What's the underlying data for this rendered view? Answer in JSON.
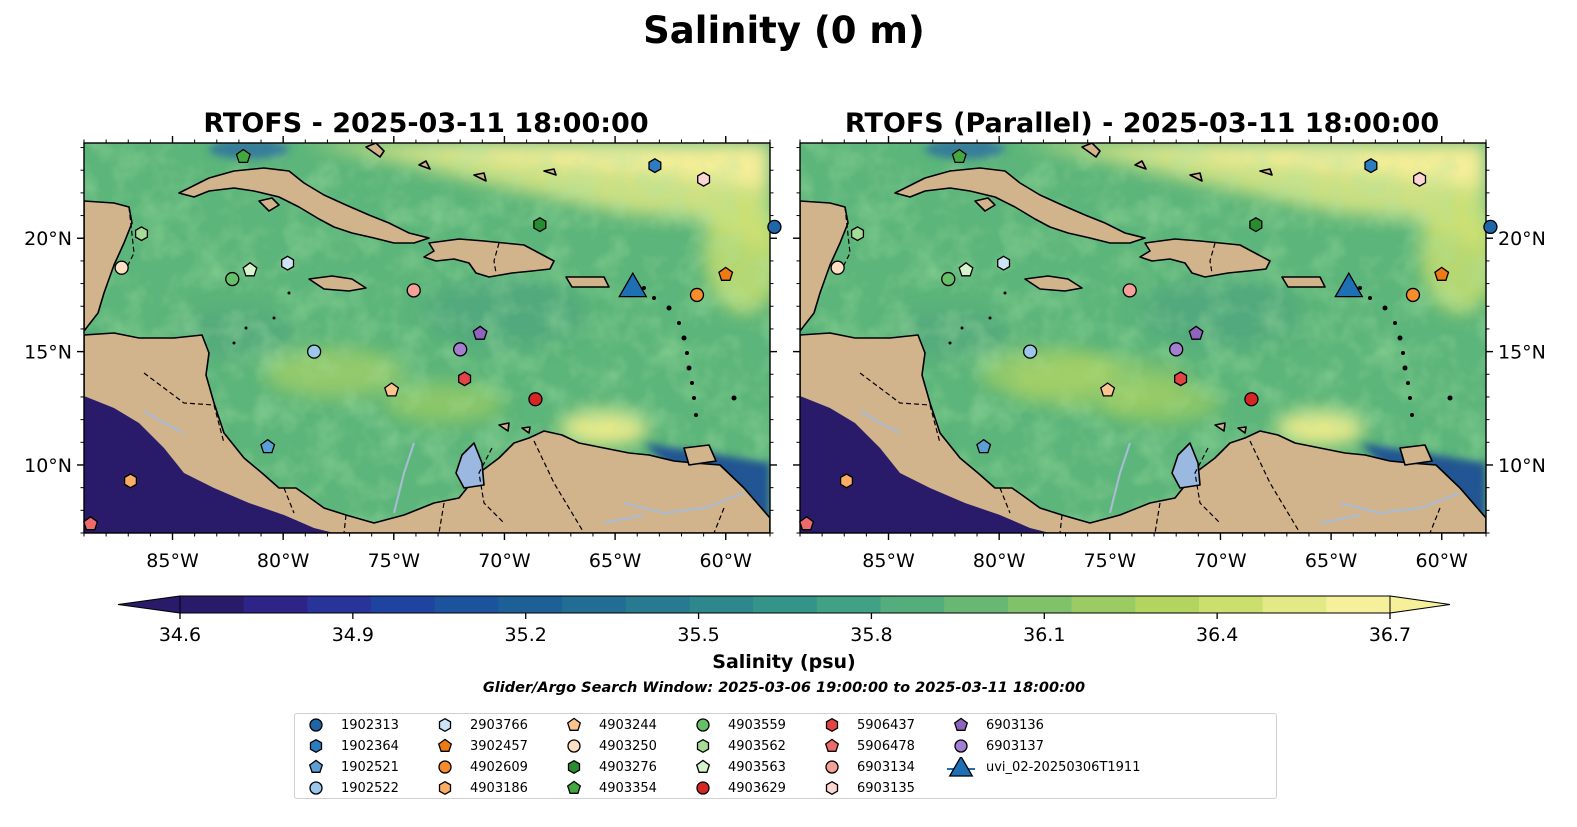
{
  "figure": {
    "title": "Salinity (0 m)",
    "search_window": "Glider/Argo Search Window: 2025-03-06 19:00:00 to 2025-03-11 18:00:00"
  },
  "panels": [
    {
      "title": "RTOFS - 2025-03-11 18:00:00",
      "variant": "rtofs"
    },
    {
      "title": "RTOFS (Parallel) - 2025-03-11 18:00:00",
      "variant": "parallel"
    }
  ],
  "map": {
    "extent_lon": [
      -89,
      -58
    ],
    "extent_lat": [
      7,
      24.2
    ],
    "x_ticks": [
      {
        "value": -85,
        "label": "85°W"
      },
      {
        "value": -80,
        "label": "80°W"
      },
      {
        "value": -75,
        "label": "75°W"
      },
      {
        "value": -70,
        "label": "70°W"
      },
      {
        "value": -65,
        "label": "65°W"
      },
      {
        "value": -60,
        "label": "60°W"
      }
    ],
    "y_ticks": [
      {
        "value": 10,
        "label": "10°N"
      },
      {
        "value": 15,
        "label": "15°N"
      },
      {
        "value": 20,
        "label": "20°N"
      }
    ],
    "colors": {
      "land": "#d2b48c",
      "lake": "#9ab8e0",
      "river": "#a8bcd8",
      "coast": "#000000"
    }
  },
  "colorbar": {
    "label": "Salinity (psu)",
    "min": 34.6,
    "max": 36.7,
    "ticks": [
      {
        "value": 34.6,
        "label": "34.6"
      },
      {
        "value": 34.9,
        "label": "34.9"
      },
      {
        "value": 35.2,
        "label": "35.2"
      },
      {
        "value": 35.5,
        "label": "35.5"
      },
      {
        "value": 35.8,
        "label": "35.8"
      },
      {
        "value": 36.1,
        "label": "36.1"
      },
      {
        "value": 36.4,
        "label": "36.4"
      },
      {
        "value": 36.7,
        "label": "36.7"
      }
    ],
    "colors": [
      "#2a1b6a",
      "#2e2488",
      "#28349a",
      "#1f44a0",
      "#1b539c",
      "#1d6097",
      "#216d93",
      "#277a90",
      "#2d878c",
      "#359489",
      "#41a184",
      "#54ad7c",
      "#68b873",
      "#80c26a",
      "#9acc63",
      "#b3d55f",
      "#cbdf6c",
      "#e3ea85",
      "#f6f09a"
    ]
  },
  "legend": [
    {
      "name": "1902313",
      "marker": "circle",
      "color": "#1f66a8"
    },
    {
      "name": "1902364",
      "marker": "hexagon",
      "color": "#2e7cc0"
    },
    {
      "name": "1902521",
      "marker": "pentagon",
      "color": "#5b9fd4"
    },
    {
      "name": "1902522",
      "marker": "circle",
      "color": "#9cc6ea"
    },
    {
      "name": "2903766",
      "marker": "hexagon",
      "color": "#cde4f6"
    },
    {
      "name": "3902457",
      "marker": "pentagon",
      "color": "#ee7a14"
    },
    {
      "name": "4902609",
      "marker": "circle",
      "color": "#f68c2a"
    },
    {
      "name": "4903186",
      "marker": "hexagon",
      "color": "#fbad66"
    },
    {
      "name": "4903244",
      "marker": "pentagon",
      "color": "#fcc590"
    },
    {
      "name": "4903250",
      "marker": "circle",
      "color": "#fde0c3"
    },
    {
      "name": "4903276",
      "marker": "hexagon",
      "color": "#2a8c30"
    },
    {
      "name": "4903354",
      "marker": "pentagon",
      "color": "#44a840"
    },
    {
      "name": "4903559",
      "marker": "circle",
      "color": "#67c067"
    },
    {
      "name": "4903562",
      "marker": "hexagon",
      "color": "#a4dc98"
    },
    {
      "name": "4903563",
      "marker": "pentagon",
      "color": "#d6f3cc"
    },
    {
      "name": "4903629",
      "marker": "circle",
      "color": "#d62624"
    },
    {
      "name": "5906437",
      "marker": "hexagon",
      "color": "#e24444"
    },
    {
      "name": "5906478",
      "marker": "pentagon",
      "color": "#ef6a6a"
    },
    {
      "name": "6903134",
      "marker": "circle",
      "color": "#f6a09a"
    },
    {
      "name": "6903135",
      "marker": "hexagon",
      "color": "#fcd6d2"
    },
    {
      "name": "6903136",
      "marker": "pentagon",
      "color": "#8e64bc"
    },
    {
      "name": "6903137",
      "marker": "circle",
      "color": "#a57fcf"
    },
    {
      "name": "uvi_02-20250306T1911",
      "marker": "triangle",
      "color": "#1f6fb4"
    }
  ],
  "floats": [
    {
      "name": "1902313",
      "lon": -57.8,
      "lat": 20.5
    },
    {
      "name": "1902364",
      "lon": -63.2,
      "lat": 23.2
    },
    {
      "name": "1902521",
      "lon": -80.7,
      "lat": 10.8
    },
    {
      "name": "1902522",
      "lon": -78.6,
      "lat": 15.0
    },
    {
      "name": "2903766",
      "lon": -79.8,
      "lat": 18.9
    },
    {
      "name": "3902457",
      "lon": -60.0,
      "lat": 18.4
    },
    {
      "name": "4902609",
      "lon": -61.3,
      "lat": 17.5
    },
    {
      "name": "4903186",
      "lon": -86.9,
      "lat": 9.3
    },
    {
      "name": "4903244",
      "lon": -75.1,
      "lat": 13.3
    },
    {
      "name": "4903250",
      "lon": -87.3,
      "lat": 18.7
    },
    {
      "name": "4903276",
      "lon": -68.4,
      "lat": 20.6
    },
    {
      "name": "4903354",
      "lon": -81.8,
      "lat": 23.6
    },
    {
      "name": "4903559",
      "lon": -82.3,
      "lat": 18.2
    },
    {
      "name": "4903562",
      "lon": -86.4,
      "lat": 20.2
    },
    {
      "name": "4903563",
      "lon": -81.5,
      "lat": 18.6
    },
    {
      "name": "4903629",
      "lon": -68.6,
      "lat": 12.9
    },
    {
      "name": "5906437",
      "lon": -71.8,
      "lat": 13.8
    },
    {
      "name": "5906478",
      "lon": -88.7,
      "lat": 7.4
    },
    {
      "name": "6903134",
      "lon": -74.1,
      "lat": 17.7
    },
    {
      "name": "6903135",
      "lon": -61.0,
      "lat": 22.6
    },
    {
      "name": "6903136",
      "lon": -71.1,
      "lat": 15.8
    },
    {
      "name": "6903137",
      "lon": -72.0,
      "lat": 15.1
    },
    {
      "name": "uvi_02-20250306T1911",
      "lon": -64.2,
      "lat": 17.9
    }
  ]
}
